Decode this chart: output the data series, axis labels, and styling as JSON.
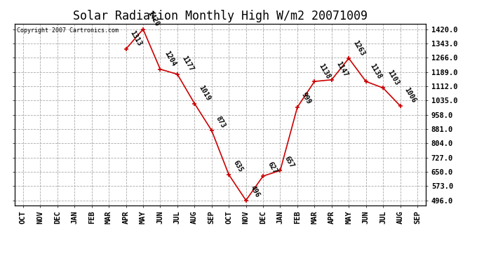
{
  "title": "Solar Radiation Monthly High W/m2 20071009",
  "copyright": "Copyright 2007 Cartronics.com",
  "x_labels": [
    "OCT",
    "NOV",
    "DEC",
    "JAN",
    "FEB",
    "MAR",
    "APR",
    "MAY",
    "JUN",
    "JUL",
    "AUG",
    "SEP",
    "OCT",
    "NOV",
    "DEC",
    "JAN",
    "FEB",
    "MAR",
    "APR",
    "MAY",
    "JUN",
    "JUL",
    "AUG",
    "SEP"
  ],
  "points": [
    [
      6,
      1313
    ],
    [
      7,
      1420
    ],
    [
      8,
      1204
    ],
    [
      9,
      1177
    ],
    [
      10,
      1019
    ],
    [
      11,
      873
    ],
    [
      12,
      635
    ],
    [
      13,
      496
    ],
    [
      14,
      627
    ],
    [
      15,
      657
    ],
    [
      16,
      999
    ],
    [
      17,
      1138
    ],
    [
      18,
      1147
    ],
    [
      19,
      1263
    ],
    [
      20,
      1138
    ],
    [
      21,
      1103
    ],
    [
      22,
      1006
    ]
  ],
  "line_color": "#cc0000",
  "bg_color": "#ffffff",
  "grid_color": "#aaaaaa",
  "yticks": [
    496.0,
    573.0,
    650.0,
    727.0,
    804.0,
    881.0,
    958.0,
    1035.0,
    1112.0,
    1189.0,
    1266.0,
    1343.0,
    1420.0
  ],
  "ylim_low": 470,
  "ylim_high": 1450,
  "title_fontsize": 12,
  "annot_fontsize": 7,
  "tick_fontsize": 7.5
}
